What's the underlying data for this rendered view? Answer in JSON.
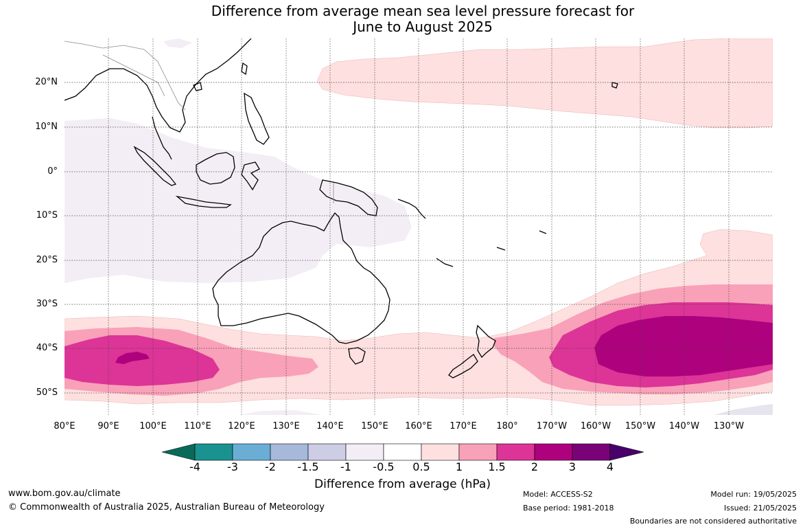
{
  "title": {
    "line1": "Difference from average mean sea level pressure forecast for",
    "line2": "June to August 2025"
  },
  "map": {
    "region": "Australia and Pacific",
    "lon_labels": [
      "80°E",
      "90°E",
      "100°E",
      "110°E",
      "120°E",
      "130°E",
      "140°E",
      "150°E",
      "160°E",
      "170°E",
      "180°",
      "170°W",
      "160°W",
      "150°W",
      "140°W",
      "130°W"
    ],
    "lat_labels": [
      "20°N",
      "10°N",
      "0°",
      "10°S",
      "20°S",
      "30°S",
      "40°S",
      "50°S"
    ]
  },
  "legend": {
    "ticks": [
      "-4",
      "-3",
      "-2",
      "-1.5",
      "-1",
      "-0.5",
      "0.5",
      "1",
      "1.5",
      "2",
      "3",
      "4"
    ],
    "colors": [
      "#0a6a5a",
      "#1a9290",
      "#6aaed6",
      "#a6b9db",
      "#cdcde5",
      "#f3eef5",
      "#ffffff",
      "#fde0df",
      "#f9a1b8",
      "#dd3497",
      "#ae017e",
      "#7a0177",
      "#49006a"
    ],
    "label": "Difference from average (hPa)"
  },
  "footer": {
    "website": "www.bom.gov.au/climate",
    "copyright": "© Commonwealth of Australia 2025, Australian Bureau of Meteorology",
    "model": "Model: ACCESS-S2",
    "base_period": "Base period: 1981-2018",
    "model_run": "Model run: 19/05/2025",
    "issued": "Issued: 21/05/2025",
    "disclaimer": "Boundaries are not considered authoritative"
  }
}
